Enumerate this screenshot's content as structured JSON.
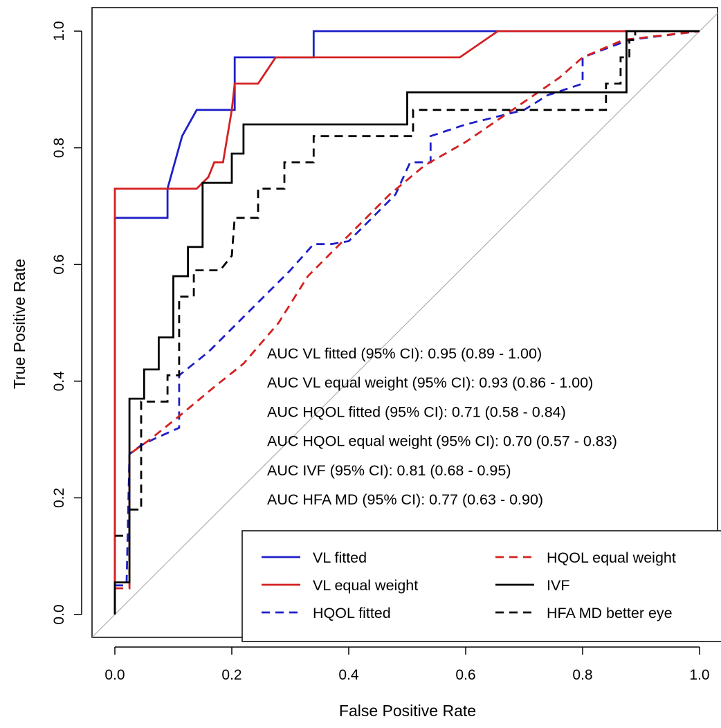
{
  "chart_data": {
    "type": "line",
    "title": "",
    "xlabel": "False Positive Rate",
    "ylabel": "True Positive Rate",
    "xlim": [
      -0.04,
      1.04
    ],
    "ylim": [
      -0.04,
      1.04
    ],
    "x_ticks": [
      "0.0",
      "0.2",
      "0.4",
      "0.6",
      "0.8",
      "1.0"
    ],
    "y_ticks": [
      "0.0",
      "0.2",
      "0.4",
      "0.6",
      "0.8",
      "1.0"
    ],
    "grid": false,
    "diagonal_reference": true,
    "legend_position": "bottom-right",
    "annotations": [
      "AUC VL fitted (95% CI): 0.95 (0.89 - 1.00)",
      "AUC VL equal weight (95% CI): 0.93 (0.86 - 1.00)",
      "AUC HQOL fitted (95% CI): 0.71 (0.58 - 0.84)",
      "AUC HQOL equal weight (95% CI): 0.70 (0.57 - 0.83)",
      "AUC IVF (95% CI): 0.81 (0.68 - 0.95)",
      "AUC HFA MD (95% CI): 0.77 (0.63 - 0.90)"
    ],
    "series": [
      {
        "name": "VL fitted",
        "color": "#1f1fc8",
        "dash": "solid",
        "points": [
          [
            0,
            0
          ],
          [
            0,
            0.68
          ],
          [
            0.09,
            0.68
          ],
          [
            0.09,
            0.73
          ],
          [
            0.115,
            0.82
          ],
          [
            0.14,
            0.865
          ],
          [
            0.205,
            0.865
          ],
          [
            0.205,
            0.955
          ],
          [
            0.34,
            0.955
          ],
          [
            0.34,
            1.0
          ],
          [
            1.0,
            1.0
          ]
        ]
      },
      {
        "name": "VL equal weight",
        "color": "#d42020",
        "dash": "solid",
        "points": [
          [
            0,
            0
          ],
          [
            0,
            0.73
          ],
          [
            0.14,
            0.73
          ],
          [
            0.16,
            0.75
          ],
          [
            0.17,
            0.775
          ],
          [
            0.185,
            0.775
          ],
          [
            0.2,
            0.865
          ],
          [
            0.205,
            0.91
          ],
          [
            0.245,
            0.91
          ],
          [
            0.275,
            0.955
          ],
          [
            0.59,
            0.955
          ],
          [
            0.655,
            1.0
          ],
          [
            1.0,
            1.0
          ]
        ]
      },
      {
        "name": "HQOL fitted",
        "color": "#1f1fc8",
        "dash": "dashed",
        "points": [
          [
            0,
            0.05
          ],
          [
            0.02,
            0.05
          ],
          [
            0.025,
            0.275
          ],
          [
            0.045,
            0.29
          ],
          [
            0.065,
            0.3
          ],
          [
            0.11,
            0.32
          ],
          [
            0.11,
            0.41
          ],
          [
            0.16,
            0.45
          ],
          [
            0.2,
            0.49
          ],
          [
            0.26,
            0.55
          ],
          [
            0.3,
            0.59
          ],
          [
            0.34,
            0.635
          ],
          [
            0.37,
            0.635
          ],
          [
            0.4,
            0.64
          ],
          [
            0.44,
            0.68
          ],
          [
            0.48,
            0.72
          ],
          [
            0.505,
            0.775
          ],
          [
            0.52,
            0.775
          ],
          [
            0.54,
            0.775
          ],
          [
            0.54,
            0.82
          ],
          [
            0.6,
            0.84
          ],
          [
            0.7,
            0.865
          ],
          [
            0.74,
            0.89
          ],
          [
            0.8,
            0.91
          ],
          [
            0.8,
            0.955
          ],
          [
            0.88,
            0.985
          ],
          [
            1.0,
            1.0
          ]
        ]
      },
      {
        "name": "HQOL equal weight",
        "color": "#d42020",
        "dash": "dashed",
        "points": [
          [
            0,
            0.045
          ],
          [
            0.025,
            0.045
          ],
          [
            0.025,
            0.275
          ],
          [
            0.06,
            0.3
          ],
          [
            0.11,
            0.34
          ],
          [
            0.17,
            0.39
          ],
          [
            0.22,
            0.43
          ],
          [
            0.28,
            0.5
          ],
          [
            0.33,
            0.58
          ],
          [
            0.4,
            0.65
          ],
          [
            0.47,
            0.72
          ],
          [
            0.53,
            0.77
          ],
          [
            0.6,
            0.81
          ],
          [
            0.68,
            0.865
          ],
          [
            0.76,
            0.92
          ],
          [
            0.8,
            0.955
          ],
          [
            0.87,
            0.985
          ],
          [
            1.0,
            1.0
          ]
        ]
      },
      {
        "name": "IVF",
        "color": "#000000",
        "dash": "solid",
        "points": [
          [
            0,
            0
          ],
          [
            0,
            0.055
          ],
          [
            0.025,
            0.055
          ],
          [
            0.025,
            0.37
          ],
          [
            0.05,
            0.37
          ],
          [
            0.05,
            0.42
          ],
          [
            0.075,
            0.42
          ],
          [
            0.075,
            0.475
          ],
          [
            0.1,
            0.475
          ],
          [
            0.1,
            0.58
          ],
          [
            0.125,
            0.58
          ],
          [
            0.125,
            0.63
          ],
          [
            0.15,
            0.63
          ],
          [
            0.15,
            0.74
          ],
          [
            0.2,
            0.74
          ],
          [
            0.2,
            0.79
          ],
          [
            0.22,
            0.79
          ],
          [
            0.22,
            0.84
          ],
          [
            0.5,
            0.84
          ],
          [
            0.5,
            0.895
          ],
          [
            0.875,
            0.895
          ],
          [
            0.875,
            1.0
          ],
          [
            1.0,
            1.0
          ]
        ]
      },
      {
        "name": "HFA MD better eye",
        "color": "#000000",
        "dash": "dashed",
        "points": [
          [
            0,
            0.135
          ],
          [
            0.025,
            0.135
          ],
          [
            0.025,
            0.18
          ],
          [
            0.045,
            0.18
          ],
          [
            0.045,
            0.365
          ],
          [
            0.09,
            0.365
          ],
          [
            0.09,
            0.41
          ],
          [
            0.11,
            0.41
          ],
          [
            0.11,
            0.545
          ],
          [
            0.135,
            0.545
          ],
          [
            0.135,
            0.59
          ],
          [
            0.18,
            0.59
          ],
          [
            0.2,
            0.615
          ],
          [
            0.205,
            0.68
          ],
          [
            0.245,
            0.68
          ],
          [
            0.245,
            0.73
          ],
          [
            0.29,
            0.73
          ],
          [
            0.29,
            0.775
          ],
          [
            0.34,
            0.775
          ],
          [
            0.34,
            0.82
          ],
          [
            0.51,
            0.82
          ],
          [
            0.51,
            0.865
          ],
          [
            0.84,
            0.865
          ],
          [
            0.84,
            0.91
          ],
          [
            0.865,
            0.91
          ],
          [
            0.865,
            0.955
          ],
          [
            0.88,
            0.955
          ],
          [
            0.88,
            0.985
          ],
          [
            0.89,
            0.985
          ],
          [
            0.89,
            1.0
          ],
          [
            1.0,
            1.0
          ]
        ]
      }
    ]
  }
}
